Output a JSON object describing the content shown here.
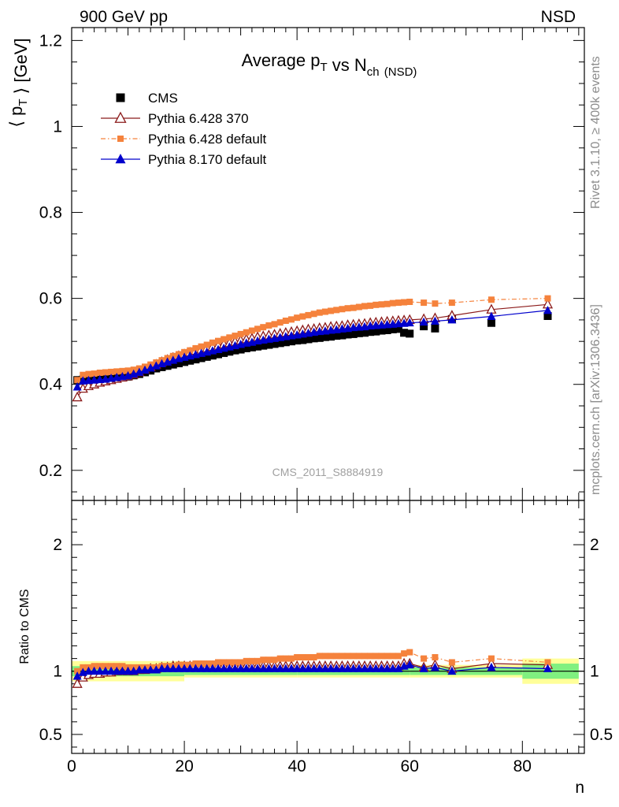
{
  "header": {
    "left": "900 GeV pp",
    "right": "NSD"
  },
  "side_labels": {
    "upper": "Rivet 3.1.10, ≥ 400k events",
    "lower": "mcplots.cern.ch [arXiv:1306.3436]"
  },
  "watermark": "CMS_2011_S8884919",
  "chart_data": [
    {
      "type": "scatter",
      "title": "Average p_T vs N_ch (NSD)",
      "xlabel": "",
      "ylabel": "⟨ p_T ⟩ [GeV]",
      "xlim": [
        0,
        91
      ],
      "ylim": [
        0.13,
        1.23
      ],
      "y_ticks": [
        0.2,
        0.4,
        0.6,
        0.8,
        1,
        1.2
      ],
      "y_tick_labels": [
        "0.2",
        "0.4",
        "0.6",
        "0.8",
        "1",
        "1.2"
      ],
      "legend_position": "top-left",
      "series": [
        {
          "name": "CMS",
          "color": "#000000",
          "marker": "filled-square",
          "x": [
            1,
            2,
            3,
            4,
            5,
            6,
            7,
            8,
            9,
            10,
            11,
            12,
            13,
            14,
            15,
            16,
            17,
            18,
            19,
            20,
            21,
            22,
            23,
            24,
            25,
            26,
            27,
            28,
            29,
            30,
            31,
            32,
            33,
            34,
            35,
            36,
            37,
            38,
            39,
            40,
            41,
            42,
            43,
            44,
            45,
            46,
            47,
            48,
            49,
            50,
            51,
            52,
            53,
            54,
            55,
            56,
            57,
            58,
            59,
            60,
            62.5,
            64.5,
            67.5,
            74.5,
            84.5
          ],
          "y": [
            0.41,
            0.411,
            0.41,
            0.41,
            0.411,
            0.412,
            0.413,
            0.414,
            0.416,
            0.418,
            0.421,
            0.424,
            0.428,
            0.432,
            0.437,
            0.44,
            0.443,
            0.446,
            0.449,
            0.452,
            0.455,
            0.458,
            0.461,
            0.464,
            0.467,
            0.47,
            0.473,
            0.476,
            0.479,
            0.481,
            0.484,
            0.486,
            0.488,
            0.49,
            0.492,
            0.494,
            0.496,
            0.498,
            0.5,
            0.502,
            0.503,
            0.505,
            0.507,
            0.508,
            0.51,
            0.511,
            0.513,
            0.514,
            0.516,
            0.517,
            0.519,
            0.52,
            0.522,
            0.523,
            0.525,
            0.526,
            0.528,
            0.529,
            0.52,
            0.518,
            0.535,
            0.53,
            0.552,
            0.543,
            0.559
          ]
        },
        {
          "name": "Pythia 6.428 370",
          "color": "#8b1a1a",
          "marker": "open-triangle",
          "line": "solid",
          "x": [
            1,
            2,
            3,
            4,
            5,
            6,
            7,
            8,
            9,
            10,
            11,
            12,
            13,
            14,
            15,
            16,
            17,
            18,
            19,
            20,
            21,
            22,
            23,
            24,
            25,
            26,
            27,
            28,
            29,
            30,
            31,
            32,
            33,
            34,
            35,
            36,
            37,
            38,
            39,
            40,
            41,
            42,
            43,
            44,
            45,
            46,
            47,
            48,
            49,
            50,
            51,
            52,
            53,
            54,
            55,
            56,
            57,
            58,
            59,
            60,
            62.5,
            64.5,
            67.5,
            74.5,
            84.5
          ],
          "y": [
            0.37,
            0.39,
            0.396,
            0.4,
            0.404,
            0.407,
            0.41,
            0.413,
            0.416,
            0.419,
            0.423,
            0.428,
            0.434,
            0.44,
            0.446,
            0.452,
            0.457,
            0.462,
            0.466,
            0.47,
            0.474,
            0.478,
            0.481,
            0.484,
            0.487,
            0.49,
            0.493,
            0.496,
            0.499,
            0.502,
            0.505,
            0.507,
            0.51,
            0.512,
            0.514,
            0.516,
            0.518,
            0.52,
            0.522,
            0.524,
            0.526,
            0.528,
            0.529,
            0.531,
            0.532,
            0.534,
            0.535,
            0.536,
            0.538,
            0.539,
            0.54,
            0.541,
            0.543,
            0.544,
            0.545,
            0.546,
            0.547,
            0.548,
            0.549,
            0.55,
            0.552,
            0.554,
            0.56,
            0.574,
            0.586
          ]
        },
        {
          "name": "Pythia 6.428 default",
          "color": "#f5823c",
          "marker": "filled-square",
          "line": "dash-dot",
          "x": [
            1,
            2,
            3,
            4,
            5,
            6,
            7,
            8,
            9,
            10,
            11,
            12,
            13,
            14,
            15,
            16,
            17,
            18,
            19,
            20,
            21,
            22,
            23,
            24,
            25,
            26,
            27,
            28,
            29,
            30,
            31,
            32,
            33,
            34,
            35,
            36,
            37,
            38,
            39,
            40,
            41,
            42,
            43,
            44,
            45,
            46,
            47,
            48,
            49,
            50,
            51,
            52,
            53,
            54,
            55,
            56,
            57,
            58,
            59,
            60,
            62.5,
            64.5,
            67.5,
            74.5,
            84.5
          ],
          "y": [
            0.41,
            0.422,
            0.424,
            0.425,
            0.427,
            0.428,
            0.429,
            0.43,
            0.431,
            0.432,
            0.434,
            0.437,
            0.441,
            0.446,
            0.451,
            0.456,
            0.461,
            0.466,
            0.47,
            0.475,
            0.479,
            0.484,
            0.488,
            0.492,
            0.497,
            0.501,
            0.505,
            0.509,
            0.513,
            0.517,
            0.521,
            0.525,
            0.529,
            0.533,
            0.537,
            0.54,
            0.544,
            0.548,
            0.551,
            0.555,
            0.558,
            0.561,
            0.564,
            0.567,
            0.569,
            0.571,
            0.573,
            0.575,
            0.577,
            0.578,
            0.58,
            0.582,
            0.583,
            0.585,
            0.586,
            0.587,
            0.589,
            0.59,
            0.591,
            0.592,
            0.59,
            0.588,
            0.59,
            0.597,
            0.6
          ]
        },
        {
          "name": "Pythia 8.170 default",
          "color": "#0000cc",
          "marker": "filled-triangle",
          "line": "solid",
          "x": [
            1,
            2,
            3,
            4,
            5,
            6,
            7,
            8,
            9,
            10,
            11,
            12,
            13,
            14,
            15,
            16,
            17,
            18,
            19,
            20,
            21,
            22,
            23,
            24,
            25,
            26,
            27,
            28,
            29,
            30,
            31,
            32,
            33,
            34,
            35,
            36,
            37,
            38,
            39,
            40,
            41,
            42,
            43,
            44,
            45,
            46,
            47,
            48,
            49,
            50,
            51,
            52,
            53,
            54,
            55,
            56,
            57,
            58,
            59,
            60,
            62.5,
            64.5,
            67.5,
            74.5,
            84.5
          ],
          "y": [
            0.394,
            0.408,
            0.409,
            0.41,
            0.411,
            0.412,
            0.414,
            0.416,
            0.418,
            0.42,
            0.424,
            0.428,
            0.433,
            0.438,
            0.443,
            0.448,
            0.452,
            0.456,
            0.46,
            0.463,
            0.466,
            0.469,
            0.472,
            0.475,
            0.478,
            0.481,
            0.484,
            0.487,
            0.49,
            0.493,
            0.496,
            0.498,
            0.501,
            0.503,
            0.505,
            0.507,
            0.509,
            0.511,
            0.513,
            0.515,
            0.517,
            0.519,
            0.521,
            0.523,
            0.524,
            0.526,
            0.527,
            0.529,
            0.53,
            0.532,
            0.533,
            0.534,
            0.536,
            0.537,
            0.538,
            0.539,
            0.54,
            0.541,
            0.542,
            0.543,
            0.545,
            0.547,
            0.55,
            0.558,
            0.572
          ]
        }
      ]
    },
    {
      "type": "scatter",
      "title": "",
      "xlabel": "n",
      "ylabel": "Ratio to CMS",
      "xlim": [
        0,
        91
      ],
      "ylim": [
        0.35,
        2.35
      ],
      "x_ticks": [
        0,
        20,
        40,
        60,
        80
      ],
      "x_tick_labels": [
        "0",
        "20",
        "40",
        "60",
        "80"
      ],
      "y_ticks": [
        0.5,
        1,
        2
      ],
      "y_tick_labels": [
        "0.5",
        "1",
        "2"
      ],
      "uncertainty_band": {
        "outer_color": "#ffff99",
        "inner_color": "#80f080",
        "x_edges": [
          0,
          20,
          40,
          60,
          80,
          90
        ],
        "outer_half_width": [
          0.08,
          0.05,
          0.05,
          0.05,
          0.1
        ],
        "inner_half_width": [
          0.04,
          0.03,
          0.03,
          0.03,
          0.06
        ]
      },
      "series": [
        {
          "name": "Pythia 6.428 370",
          "color": "#8b1a1a",
          "marker": "open-triangle",
          "line": "solid",
          "x": [
            1,
            2,
            3,
            4,
            5,
            6,
            7,
            8,
            9,
            10,
            11,
            12,
            13,
            14,
            15,
            16,
            17,
            18,
            19,
            20,
            21,
            22,
            23,
            24,
            25,
            26,
            27,
            28,
            29,
            30,
            31,
            32,
            33,
            34,
            35,
            36,
            37,
            38,
            39,
            40,
            41,
            42,
            43,
            44,
            45,
            46,
            47,
            48,
            49,
            50,
            51,
            52,
            53,
            54,
            55,
            56,
            57,
            58,
            59,
            60,
            62.5,
            64.5,
            67.5,
            74.5,
            84.5
          ],
          "y": [
            0.9,
            0.95,
            0.97,
            0.98,
            0.98,
            0.99,
            0.99,
            1.0,
            1.0,
            1.0,
            1.0,
            1.01,
            1.01,
            1.02,
            1.02,
            1.03,
            1.03,
            1.04,
            1.04,
            1.04,
            1.04,
            1.04,
            1.04,
            1.04,
            1.04,
            1.04,
            1.04,
            1.04,
            1.04,
            1.04,
            1.04,
            1.04,
            1.04,
            1.04,
            1.04,
            1.04,
            1.04,
            1.04,
            1.04,
            1.04,
            1.04,
            1.04,
            1.04,
            1.04,
            1.04,
            1.04,
            1.04,
            1.04,
            1.04,
            1.04,
            1.04,
            1.04,
            1.04,
            1.04,
            1.04,
            1.04,
            1.04,
            1.04,
            1.06,
            1.06,
            1.03,
            1.05,
            1.02,
            1.06,
            1.05
          ]
        },
        {
          "name": "Pythia 6.428 default",
          "color": "#f5823c",
          "marker": "filled-square",
          "line": "dash-dot",
          "x": [
            1,
            2,
            3,
            4,
            5,
            6,
            7,
            8,
            9,
            10,
            11,
            12,
            13,
            14,
            15,
            16,
            17,
            18,
            19,
            20,
            21,
            22,
            23,
            24,
            25,
            26,
            27,
            28,
            29,
            30,
            31,
            32,
            33,
            34,
            35,
            36,
            37,
            38,
            39,
            40,
            41,
            42,
            43,
            44,
            45,
            46,
            47,
            48,
            49,
            50,
            51,
            52,
            53,
            54,
            55,
            56,
            57,
            58,
            59,
            60,
            62.5,
            64.5,
            67.5,
            74.5,
            84.5
          ],
          "y": [
            1.0,
            1.03,
            1.03,
            1.04,
            1.04,
            1.04,
            1.04,
            1.04,
            1.04,
            1.03,
            1.03,
            1.03,
            1.03,
            1.03,
            1.03,
            1.04,
            1.04,
            1.04,
            1.05,
            1.05,
            1.05,
            1.06,
            1.06,
            1.06,
            1.06,
            1.07,
            1.07,
            1.07,
            1.07,
            1.07,
            1.08,
            1.08,
            1.08,
            1.09,
            1.09,
            1.09,
            1.1,
            1.1,
            1.1,
            1.11,
            1.11,
            1.11,
            1.11,
            1.12,
            1.12,
            1.12,
            1.12,
            1.12,
            1.12,
            1.12,
            1.12,
            1.12,
            1.12,
            1.12,
            1.12,
            1.12,
            1.12,
            1.12,
            1.14,
            1.15,
            1.1,
            1.11,
            1.07,
            1.1,
            1.07
          ]
        },
        {
          "name": "Pythia 8.170 default",
          "color": "#0000cc",
          "marker": "filled-triangle",
          "line": "solid",
          "x": [
            1,
            2,
            3,
            4,
            5,
            6,
            7,
            8,
            9,
            10,
            11,
            12,
            13,
            14,
            15,
            16,
            17,
            18,
            19,
            20,
            21,
            22,
            23,
            24,
            25,
            26,
            27,
            28,
            29,
            30,
            31,
            32,
            33,
            34,
            35,
            36,
            37,
            38,
            39,
            40,
            41,
            42,
            43,
            44,
            45,
            46,
            47,
            48,
            49,
            50,
            51,
            52,
            53,
            54,
            55,
            56,
            57,
            58,
            59,
            60,
            62.5,
            64.5,
            67.5,
            74.5,
            84.5
          ],
          "y": [
            0.96,
            0.99,
            1.0,
            1.0,
            1.0,
            1.0,
            1.0,
            1.0,
            1.0,
            1.0,
            1.0,
            1.01,
            1.01,
            1.01,
            1.01,
            1.02,
            1.02,
            1.02,
            1.02,
            1.02,
            1.02,
            1.02,
            1.02,
            1.02,
            1.02,
            1.02,
            1.02,
            1.02,
            1.02,
            1.02,
            1.02,
            1.02,
            1.02,
            1.02,
            1.02,
            1.02,
            1.02,
            1.02,
            1.02,
            1.02,
            1.02,
            1.02,
            1.02,
            1.02,
            1.02,
            1.02,
            1.02,
            1.02,
            1.02,
            1.02,
            1.02,
            1.02,
            1.02,
            1.02,
            1.02,
            1.02,
            1.02,
            1.02,
            1.04,
            1.05,
            1.02,
            1.03,
            1.0,
            1.03,
            1.02
          ]
        }
      ]
    }
  ]
}
